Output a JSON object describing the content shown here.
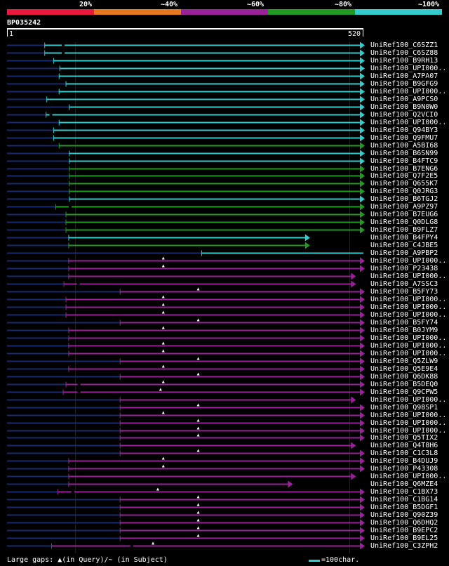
{
  "identity_legend": [
    {
      "label": "20%",
      "color": "#e8193c"
    },
    {
      "label": "~40%",
      "color": "#e87722"
    },
    {
      "label": "~60%",
      "color": "#992299"
    },
    {
      "label": "~80%",
      "color": "#229922"
    },
    {
      "label": "~100%",
      "color": "#33cccc"
    }
  ],
  "query": {
    "id": "BP035242",
    "start": "1",
    "end": "520",
    "length": 520
  },
  "footer": {
    "gaps_legend": "Large gaps: ▲(in Query)/~ (in Subject)",
    "scale_label": "=100char."
  },
  "colors": {
    "cyan": "#33cccc",
    "green": "#229922",
    "purple": "#992299",
    "navy": "#1a2a6e"
  },
  "hits": [
    {
      "label": "UniRef100_C6SZZ1",
      "color": "cyan",
      "start": 55,
      "end": 520,
      "arrow": true,
      "gap_query": null,
      "gap_subject": [
        82
      ]
    },
    {
      "label": "UniRef100_C6SZ88",
      "color": "cyan",
      "start": 55,
      "end": 520,
      "arrow": true,
      "gap_query": null,
      "gap_subject": [
        82
      ]
    },
    {
      "label": "UniRef100_B9RH13",
      "color": "cyan",
      "start": 68,
      "end": 520,
      "arrow": true,
      "gap_query": null,
      "gap_subject": []
    },
    {
      "label": "UniRef100_UPI000..",
      "color": "cyan",
      "start": 77,
      "end": 520,
      "arrow": true,
      "gap_query": null,
      "gap_subject": []
    },
    {
      "label": "UniRef100_A7PA07",
      "color": "cyan",
      "start": 76,
      "end": 520,
      "arrow": true,
      "gap_query": null,
      "gap_subject": []
    },
    {
      "label": "UniRef100_B9GFG9",
      "color": "cyan",
      "start": 86,
      "end": 520,
      "arrow": true,
      "gap_query": null,
      "gap_subject": []
    },
    {
      "label": "UniRef100_UPI000..",
      "color": "cyan",
      "start": 76,
      "end": 520,
      "arrow": true,
      "gap_query": null,
      "gap_subject": []
    },
    {
      "label": "UniRef100_A9PCS0",
      "color": "cyan",
      "start": 58,
      "end": 520,
      "arrow": true,
      "gap_query": null,
      "gap_subject": []
    },
    {
      "label": "UniRef100_B9N0W0",
      "color": "cyan",
      "start": 91,
      "end": 520,
      "arrow": true,
      "gap_query": null,
      "gap_subject": []
    },
    {
      "label": "UniRef100_Q2VCI0",
      "color": "cyan",
      "start": 57,
      "end": 520,
      "arrow": true,
      "gap_query": null,
      "gap_subject": [
        64
      ]
    },
    {
      "label": "UniRef100_UPI000..",
      "color": "cyan",
      "start": 76,
      "end": 520,
      "arrow": true,
      "gap_query": null,
      "gap_subject": []
    },
    {
      "label": "UniRef100_Q94BY3",
      "color": "cyan",
      "start": 68,
      "end": 520,
      "arrow": true,
      "gap_query": null,
      "gap_subject": []
    },
    {
      "label": "UniRef100_Q9FMU7",
      "color": "cyan",
      "start": 68,
      "end": 520,
      "arrow": true,
      "gap_query": null,
      "gap_subject": []
    },
    {
      "label": "UniRef100_A5BI68",
      "color": "green",
      "start": 76,
      "end": 520,
      "arrow": true,
      "gap_query": null,
      "gap_subject": []
    },
    {
      "label": "UniRef100_B6SN99",
      "color": "cyan",
      "start": 91,
      "end": 520,
      "arrow": true,
      "gap_query": null,
      "gap_subject": []
    },
    {
      "label": "UniRef100_B4FTC9",
      "color": "cyan",
      "start": 91,
      "end": 520,
      "arrow": true,
      "gap_query": null,
      "gap_subject": []
    },
    {
      "label": "UniRef100_B7ENG6",
      "color": "green",
      "start": 91,
      "end": 520,
      "arrow": true,
      "gap_query": null,
      "gap_subject": []
    },
    {
      "label": "UniRef100_Q7F2E5",
      "color": "green",
      "start": 91,
      "end": 520,
      "arrow": true,
      "gap_query": null,
      "gap_subject": []
    },
    {
      "label": "UniRef100_Q655K7",
      "color": "green",
      "start": 91,
      "end": 520,
      "arrow": true,
      "gap_query": null,
      "gap_subject": []
    },
    {
      "label": "UniRef100_Q0JRG3",
      "color": "green",
      "start": 91,
      "end": 520,
      "arrow": true,
      "gap_query": null,
      "gap_subject": []
    },
    {
      "label": "UniRef100_B6TGJ2",
      "color": "cyan",
      "start": 91,
      "end": 520,
      "arrow": true,
      "gap_query": null,
      "gap_subject": []
    },
    {
      "label": "UniRef100_A9PZ97",
      "color": "green",
      "start": 71,
      "end": 520,
      "arrow": true,
      "gap_query": null,
      "gap_subject": [
        92
      ]
    },
    {
      "label": "UniRef100_B7EUG6",
      "color": "green",
      "start": 86,
      "end": 520,
      "arrow": true,
      "gap_query": null,
      "gap_subject": []
    },
    {
      "label": "UniRef100_Q0DLG8",
      "color": "green",
      "start": 86,
      "end": 520,
      "arrow": true,
      "gap_query": null,
      "gap_subject": []
    },
    {
      "label": "UniRef100_B9FLZ7",
      "color": "green",
      "start": 86,
      "end": 520,
      "arrow": true,
      "gap_query": null,
      "gap_subject": []
    },
    {
      "label": "UniRef100_B4FPY4",
      "color": "cyan",
      "start": 90,
      "end": 440,
      "arrow": true,
      "gap_query": null,
      "gap_subject": []
    },
    {
      "label": "UniRef100_C4JBE5",
      "color": "green",
      "start": 90,
      "end": 440,
      "arrow": true,
      "gap_query": null,
      "gap_subject": []
    },
    {
      "label": "UniRef100_A9PBP2",
      "color": "cyan",
      "start": 284,
      "end": 520,
      "arrow": false,
      "gap_query": null,
      "gap_subject": []
    },
    {
      "label": "UniRef100_UPI000..",
      "color": "purple",
      "start": 90,
      "end": 520,
      "arrow": true,
      "gap_query": 228,
      "gap_subject": []
    },
    {
      "label": "UniRef100_P23438",
      "color": "purple",
      "start": 90,
      "end": 520,
      "arrow": true,
      "gap_query": 228,
      "gap_subject": []
    },
    {
      "label": "UniRef100_UPI000..",
      "color": "purple",
      "start": 90,
      "end": 507,
      "arrow": true,
      "gap_query": null,
      "gap_subject": []
    },
    {
      "label": "UniRef100_A7SSC3",
      "color": "purple",
      "start": 83,
      "end": 507,
      "arrow": true,
      "gap_query": null,
      "gap_subject": [
        104
      ]
    },
    {
      "label": "UniRef100_B5FY73",
      "color": "purple",
      "start": 165,
      "end": 520,
      "arrow": true,
      "gap_query": 279,
      "gap_subject": []
    },
    {
      "label": "UniRef100_UPI000..",
      "color": "purple",
      "start": 86,
      "end": 520,
      "arrow": true,
      "gap_query": 228,
      "gap_subject": []
    },
    {
      "label": "UniRef100_UPI000..",
      "color": "purple",
      "start": 86,
      "end": 520,
      "arrow": true,
      "gap_query": 228,
      "gap_subject": []
    },
    {
      "label": "UniRef100_UPI000..",
      "color": "purple",
      "start": 86,
      "end": 520,
      "arrow": true,
      "gap_query": 228,
      "gap_subject": []
    },
    {
      "label": "UniRef100_B5FY74",
      "color": "purple",
      "start": 165,
      "end": 520,
      "arrow": true,
      "gap_query": 279,
      "gap_subject": []
    },
    {
      "label": "UniRef100_B0JYM9",
      "color": "purple",
      "start": 90,
      "end": 520,
      "arrow": true,
      "gap_query": 228,
      "gap_subject": []
    },
    {
      "label": "UniRef100_UPI000..",
      "color": "purple",
      "start": 90,
      "end": 520,
      "arrow": true,
      "gap_query": null,
      "gap_subject": []
    },
    {
      "label": "UniRef100_UPI000..",
      "color": "purple",
      "start": 90,
      "end": 520,
      "arrow": true,
      "gap_query": 228,
      "gap_subject": []
    },
    {
      "label": "UniRef100_UPI000..",
      "color": "purple",
      "start": 90,
      "end": 520,
      "arrow": true,
      "gap_query": 228,
      "gap_subject": []
    },
    {
      "label": "UniRef100_Q5ZLW9",
      "color": "purple",
      "start": 165,
      "end": 520,
      "arrow": true,
      "gap_query": 279,
      "gap_subject": []
    },
    {
      "label": "UniRef100_Q5E9E4",
      "color": "purple",
      "start": 90,
      "end": 520,
      "arrow": true,
      "gap_query": 228,
      "gap_subject": []
    },
    {
      "label": "UniRef100_Q6DK88",
      "color": "purple",
      "start": 165,
      "end": 520,
      "arrow": true,
      "gap_query": 279,
      "gap_subject": []
    },
    {
      "label": "UniRef100_B5DEQ0",
      "color": "purple",
      "start": 86,
      "end": 520,
      "arrow": true,
      "gap_query": 228,
      "gap_subject": [
        105
      ]
    },
    {
      "label": "UniRef100_Q9CPW5",
      "color": "purple",
      "start": 82,
      "end": 520,
      "arrow": true,
      "gap_query": 224,
      "gap_subject": [
        105
      ]
    },
    {
      "label": "UniRef100_UPI000..",
      "color": "purple",
      "start": 165,
      "end": 507,
      "arrow": true,
      "gap_query": null,
      "gap_subject": []
    },
    {
      "label": "UniRef100_Q98SP1",
      "color": "purple",
      "start": 165,
      "end": 520,
      "arrow": true,
      "gap_query": 279,
      "gap_subject": []
    },
    {
      "label": "UniRef100_UPI000..",
      "color": "purple",
      "start": 165,
      "end": 520,
      "arrow": true,
      "gap_query": 228,
      "gap_subject": []
    },
    {
      "label": "UniRef100_UPI000..",
      "color": "purple",
      "start": 165,
      "end": 520,
      "arrow": true,
      "gap_query": 279,
      "gap_subject": []
    },
    {
      "label": "UniRef100_UPI000..",
      "color": "purple",
      "start": 165,
      "end": 520,
      "arrow": true,
      "gap_query": 279,
      "gap_subject": []
    },
    {
      "label": "UniRef100_Q5TIX2",
      "color": "purple",
      "start": 165,
      "end": 520,
      "arrow": true,
      "gap_query": 279,
      "gap_subject": []
    },
    {
      "label": "UniRef100_Q4T8H6",
      "color": "purple",
      "start": 165,
      "end": 507,
      "arrow": true,
      "gap_query": null,
      "gap_subject": []
    },
    {
      "label": "UniRef100_C1C3L8",
      "color": "purple",
      "start": 165,
      "end": 520,
      "arrow": true,
      "gap_query": 279,
      "gap_subject": []
    },
    {
      "label": "UniRef100_B4DUJ9",
      "color": "purple",
      "start": 90,
      "end": 520,
      "arrow": true,
      "gap_query": 228,
      "gap_subject": []
    },
    {
      "label": "UniRef100_P43308",
      "color": "purple",
      "start": 90,
      "end": 520,
      "arrow": true,
      "gap_query": 228,
      "gap_subject": []
    },
    {
      "label": "UniRef100_UPI000..",
      "color": "purple",
      "start": 90,
      "end": 507,
      "arrow": true,
      "gap_query": null,
      "gap_subject": []
    },
    {
      "label": "UniRef100_Q6MZE4",
      "color": "purple",
      "start": 90,
      "end": 415,
      "arrow": true,
      "gap_query": null,
      "gap_subject": []
    },
    {
      "label": "UniRef100_C1BX73",
      "color": "purple",
      "start": 74,
      "end": 520,
      "arrow": true,
      "gap_query": 220,
      "gap_subject": [
        96
      ]
    },
    {
      "label": "UniRef100_C1BG14",
      "color": "purple",
      "start": 165,
      "end": 520,
      "arrow": true,
      "gap_query": 279,
      "gap_subject": []
    },
    {
      "label": "UniRef100_B5DGF1",
      "color": "purple",
      "start": 165,
      "end": 520,
      "arrow": true,
      "gap_query": 279,
      "gap_subject": []
    },
    {
      "label": "UniRef100_Q90Z39",
      "color": "purple",
      "start": 165,
      "end": 520,
      "arrow": true,
      "gap_query": 279,
      "gap_subject": []
    },
    {
      "label": "UniRef100_Q6DHQ2",
      "color": "purple",
      "start": 165,
      "end": 520,
      "arrow": true,
      "gap_query": 279,
      "gap_subject": []
    },
    {
      "label": "UniRef100_B9EPC2",
      "color": "purple",
      "start": 165,
      "end": 520,
      "arrow": true,
      "gap_query": 279,
      "gap_subject": []
    },
    {
      "label": "UniRef100_B9EL25",
      "color": "purple",
      "start": 165,
      "end": 520,
      "arrow": true,
      "gap_query": 279,
      "gap_subject": []
    },
    {
      "label": "UniRef100_C3ZPH2",
      "color": "purple",
      "start": 65,
      "end": 520,
      "arrow": true,
      "gap_query": 213,
      "gap_subject": [
        182
      ]
    }
  ]
}
